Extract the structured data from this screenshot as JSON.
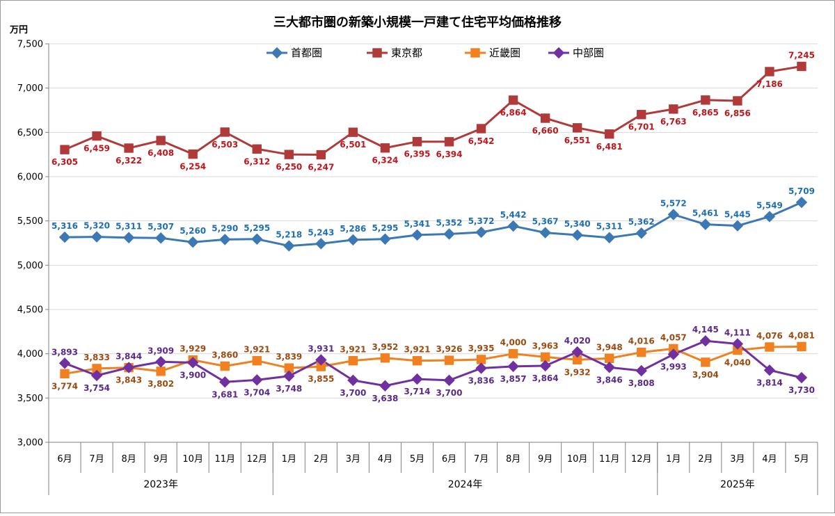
{
  "chart_data": {
    "type": "line",
    "title": "三大都市圏の新築小規模一戸建て住宅平均価格推移",
    "ylabel": "万円",
    "ylim": [
      3000,
      7500
    ],
    "yticks": [
      "3,000",
      "3,500",
      "4,000",
      "4,500",
      "5,000",
      "5,500",
      "6,000",
      "6,500",
      "7,000",
      "7,500"
    ],
    "categories": [
      "6月",
      "7月",
      "8月",
      "9月",
      "10月",
      "11月",
      "12月",
      "1月",
      "2月",
      "3月",
      "4月",
      "5月",
      "6月",
      "7月",
      "8月",
      "9月",
      "10月",
      "11月",
      "12月",
      "1月",
      "2月",
      "3月",
      "4月",
      "5月"
    ],
    "year_groups": [
      {
        "label": "2023年",
        "start": 0,
        "end": 6
      },
      {
        "label": "2024年",
        "start": 7,
        "end": 18
      },
      {
        "label": "2025年",
        "start": 19,
        "end": 23
      }
    ],
    "series": [
      {
        "name": "首都圏",
        "color": "#3C78B4",
        "label_color": "#1F6FB5",
        "marker": "diamond",
        "values": [
          5316,
          5320,
          5311,
          5307,
          5260,
          5290,
          5295,
          5218,
          5243,
          5286,
          5295,
          5341,
          5352,
          5372,
          5442,
          5367,
          5340,
          5311,
          5362,
          5572,
          5461,
          5445,
          5549,
          5709
        ],
        "labels": [
          "5,316",
          "5,320",
          "5,311",
          "5,307",
          "5,260",
          "5,290",
          "5,295",
          "5,218",
          "5,243",
          "5,286",
          "5,295",
          "5,341",
          "5,352",
          "5,372",
          "5,442",
          "5,367",
          "5,340",
          "5,311",
          "5,362",
          "5,572",
          "5,461",
          "5,445",
          "5,549",
          "5,709"
        ],
        "label_pos": [
          "above",
          "above",
          "above",
          "above",
          "above",
          "above",
          "above",
          "above",
          "above",
          "above",
          "above",
          "above",
          "above",
          "above",
          "above",
          "above",
          "above",
          "above",
          "above",
          "above",
          "above",
          "above",
          "above",
          "above"
        ]
      },
      {
        "name": "東京都",
        "color": "#B03A3A",
        "label_color": "#C0161C",
        "marker": "square",
        "values": [
          6305,
          6459,
          6322,
          6408,
          6254,
          6503,
          6312,
          6250,
          6247,
          6501,
          6324,
          6395,
          6394,
          6542,
          6864,
          6660,
          6551,
          6481,
          6701,
          6763,
          6865,
          6856,
          7186,
          7245
        ],
        "labels": [
          "6,305",
          "6,459",
          "6,322",
          "6,408",
          "6,254",
          "6,503",
          "6,312",
          "6,250",
          "6,247",
          "6,501",
          "6,324",
          "6,395",
          "6,394",
          "6,542",
          "6,864",
          "6,660",
          "6,551",
          "6,481",
          "6,701",
          "6,763",
          "6,865",
          "6,856",
          "7,186",
          "7,245"
        ],
        "label_pos": [
          "below",
          "below",
          "below",
          "below",
          "below",
          "below",
          "below",
          "below",
          "below",
          "below",
          "below",
          "below",
          "below",
          "below",
          "below",
          "below",
          "below",
          "below",
          "below",
          "below",
          "below",
          "below",
          "below",
          "above"
        ]
      },
      {
        "name": "近畿圏",
        "color": "#F08020",
        "label_color": "#9C4A10",
        "marker": "square",
        "values": [
          3774,
          3833,
          3843,
          3802,
          3929,
          3860,
          3921,
          3839,
          3855,
          3921,
          3952,
          3921,
          3926,
          3935,
          4000,
          3963,
          3932,
          3948,
          4016,
          4057,
          3904,
          4040,
          4076,
          4081
        ],
        "labels": [
          "3,774",
          "3,833",
          "3,843",
          "3,802",
          "3,929",
          "3,860",
          "3,921",
          "3,839",
          "3,855",
          "3,921",
          "3,952",
          "3,921",
          "3,926",
          "3,935",
          "4,000",
          "3,963",
          "3,932",
          "3,948",
          "4,016",
          "4,057",
          "3,904",
          "4,040",
          "4,076",
          "4,081"
        ],
        "label_pos": [
          "below",
          "above",
          "below",
          "below",
          "above",
          "above",
          "above",
          "above",
          "below",
          "above",
          "above",
          "above",
          "above",
          "above",
          "above",
          "above",
          "below",
          "above",
          "above",
          "above",
          "below",
          "below",
          "above",
          "above"
        ]
      },
      {
        "name": "中部圏",
        "color": "#7030A0",
        "label_color": "#5A2A8A",
        "marker": "diamond",
        "values": [
          3893,
          3754,
          3844,
          3909,
          3900,
          3681,
          3704,
          3748,
          3931,
          3700,
          3638,
          3714,
          3700,
          3836,
          3857,
          3864,
          4020,
          3846,
          3808,
          3993,
          4145,
          4111,
          3814,
          3730
        ],
        "labels": [
          "3,893",
          "3,754",
          "3,844",
          "3,909",
          "3,900",
          "3,681",
          "3,704",
          "3,748",
          "3,931",
          "3,700",
          "3,638",
          "3,714",
          "3,700",
          "3,836",
          "3,857",
          "3,864",
          "4,020",
          "3,846",
          "3,808",
          "3,993",
          "4,145",
          "4,111",
          "3,814",
          "3,730"
        ],
        "label_pos": [
          "above",
          "below",
          "above",
          "above",
          "below",
          "below",
          "below",
          "below",
          "above",
          "below",
          "below",
          "below",
          "below",
          "below",
          "below",
          "below",
          "above",
          "below",
          "below",
          "below",
          "above",
          "above",
          "below",
          "below"
        ]
      }
    ]
  }
}
